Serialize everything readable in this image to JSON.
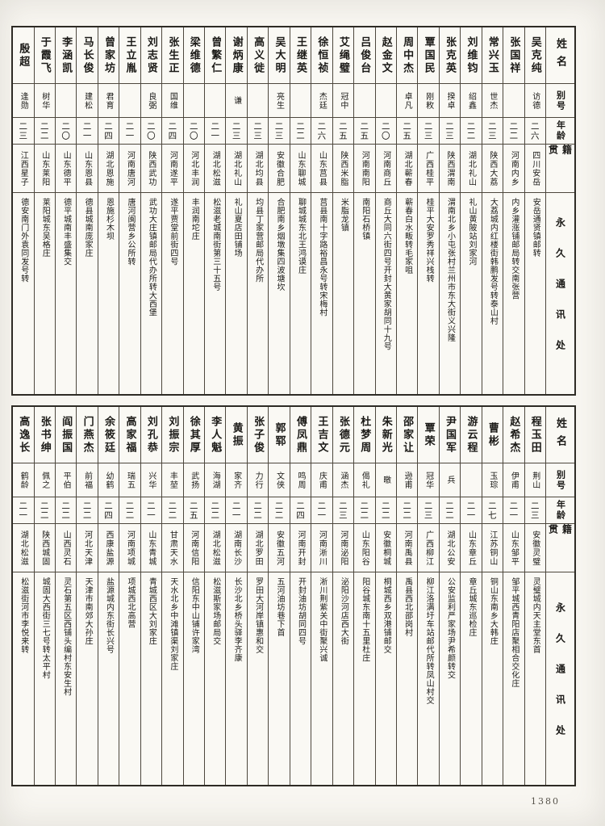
{
  "page": {
    "number": "1380"
  },
  "headers": {
    "name": "姓名",
    "alias": "别号",
    "age": "年龄",
    "native_place": "籍贯",
    "address": "永久通讯处"
  },
  "sections": [
    {
      "entries": [
        {
          "name": "吴克纯",
          "alias": "访德",
          "age": "二六",
          "native_place": "四川安岳",
          "address": "安岳通贤镇邮转"
        },
        {
          "name": "张国祥",
          "alias": "",
          "age": "二二",
          "native_place": "河南内乡",
          "address": "内乡灌涨铺邮局转交南张营"
        },
        {
          "name": "常兴玉",
          "alias": "世杰",
          "age": "二三",
          "native_place": "陕西大荔",
          "address": "大荔城内红楼街韩鹏发号转泰山村"
        },
        {
          "name": "刘维钧",
          "alias": "绍鑫",
          "age": "二二",
          "native_place": "湖北礼山",
          "address": "礼山黄陂站刘家河"
        },
        {
          "name": "张克英",
          "alias": "揆卓",
          "age": "二三",
          "native_place": "陕西渭南",
          "address": "渭南北乡小屯张村兰州市东大街义兴隆"
        },
        {
          "name": "覃国民",
          "alias": "刚敉",
          "age": "二三",
          "native_place": "广西桂平",
          "address": "桂平大安罗秀祥兴栈转"
        },
        {
          "name": "周中杰",
          "alias": "卓凡",
          "age": "二五",
          "native_place": "湖北蕲春",
          "address": "蕲春白水畈转毛家咀"
        },
        {
          "name": "赵金文",
          "alias": "",
          "age": "二〇",
          "native_place": "河南商丘",
          "address": "商丘大同六街四号开封大黄家胡同十九号"
        },
        {
          "name": "吕俊台",
          "alias": "",
          "age": "二五",
          "native_place": "河南南阳",
          "address": "南阳石桥镇"
        },
        {
          "name": "艾绳璧",
          "alias": "冠中",
          "age": "二五",
          "native_place": "陕西米脂",
          "address": "米脂龙镇"
        },
        {
          "name": "徐恒祯",
          "alias": "杰廷",
          "age": "二六",
          "native_place": "山东莒县",
          "address": "莒县南十字路裕昌永号转宋梅村"
        },
        {
          "name": "王继英",
          "alias": "",
          "age": "二二",
          "native_place": "山东聊城",
          "address": "聊城城东北王鸿谟庄"
        },
        {
          "name": "吴大明",
          "alias": "亮生",
          "age": "二三",
          "native_place": "安徽合肥",
          "address": "合肥南乡烟墩集四波塘坎"
        },
        {
          "name": "高义徙",
          "alias": "",
          "age": "二三",
          "native_place": "湖北均县",
          "address": "均县丁家营邮局代办所"
        },
        {
          "name": "谢炳康",
          "alias": "谦",
          "age": "二三",
          "native_place": "湖北礼山",
          "address": "礼山夏店田铺场"
        },
        {
          "name": "曾繁仁",
          "alias": "",
          "age": "二一",
          "native_place": "湖北松滋",
          "address": "松滋老城南街第三十五号"
        },
        {
          "name": "梁维德",
          "alias": "",
          "age": "二〇",
          "native_place": "河北丰润",
          "address": "丰润南坨庄"
        },
        {
          "name": "张生正",
          "alias": "国维",
          "age": "二四",
          "native_place": "河南遂平",
          "address": "遂平贾堂前街四号"
        },
        {
          "name": "刘志贤",
          "alias": "良弼",
          "age": "二〇",
          "native_place": "陕西武功",
          "address": "武功大庄镇邮局代办所转大西堡"
        },
        {
          "name": "王立胤",
          "alias": "",
          "age": "二一",
          "native_place": "河南唐河",
          "address": "唐河闽营乡公所转"
        },
        {
          "name": "曾家坊",
          "alias": "君育",
          "age": "二四",
          "native_place": "湖北恩施",
          "address": "恩施杉木坝"
        },
        {
          "name": "马长俊",
          "alias": "建松",
          "age": "二一",
          "native_place": "山东恩县",
          "address": "德县城南庞家庄"
        },
        {
          "name": "李涵凯",
          "alias": "",
          "age": "二〇",
          "native_place": "山东德平",
          "address": "德平城南丰盛集交"
        },
        {
          "name": "于霞飞",
          "alias": "树华",
          "age": "二二",
          "native_place": "山东莱阳",
          "address": "莱阳城东吴格庄"
        },
        {
          "name": "殷超",
          "alias": "逢勋",
          "age": "二三",
          "native_place": "江西星子",
          "address": "德安南门外袁同发号转"
        }
      ]
    },
    {
      "entries": [
        {
          "name": "程玉田",
          "alias": "荆山",
          "age": "二三",
          "native_place": "安徽灵璧",
          "address": "灵璧城内天主堂东首"
        },
        {
          "name": "赵希杰",
          "alias": "伊甫",
          "age": "二一",
          "native_place": "山东邹平",
          "address": "邹平城西青阳店聚相合交化庄"
        },
        {
          "name": "曹彬",
          "alias": "玉琮",
          "age": "二七",
          "native_place": "江苏铜山",
          "address": "铜山东南乡大韩庄"
        },
        {
          "name": "游云程",
          "alias": "",
          "age": "二一",
          "native_place": "山东章丘",
          "address": "章丘城东巡检庄"
        },
        {
          "name": "尹国军",
          "alias": "兵",
          "age": "二二",
          "native_place": "湖北公安",
          "address": "公安监利严家场尹希颜转交"
        },
        {
          "name": "覃荣",
          "alias": "冠华",
          "age": "二三",
          "native_place": "广西柳江",
          "address": "柳江洛满圩车站邮代所转凤山村交"
        },
        {
          "name": "邵家让",
          "alias": "逊甫",
          "age": "二二",
          "native_place": "河南禹县",
          "address": "禹县西北邵岗村"
        },
        {
          "name": "朱新光",
          "alias": "曒",
          "age": "二二",
          "native_place": "安徽桐城",
          "address": "桐城西乡双港铺邮交"
        },
        {
          "name": "杜梦周",
          "alias": "偈礼",
          "age": "二二",
          "native_place": "山东阳谷",
          "address": "阳谷城东南十五里杜庄"
        },
        {
          "name": "张德元",
          "alias": "涵杰",
          "age": "二三",
          "native_place": "河南泌阳",
          "address": "泌阳沙河店西大街"
        },
        {
          "name": "王吉文",
          "alias": "庆甫",
          "age": "二一",
          "native_place": "河南淅川",
          "address": "淅川荆紫关中街聚兴诚"
        },
        {
          "name": "傅凤鼎",
          "alias": "鸣周",
          "age": "二四",
          "native_place": "河南开封",
          "address": "开封油坊胡同四号"
        },
        {
          "name": "郭郓",
          "alias": "文侠",
          "age": "二二",
          "native_place": "安徽五河",
          "address": "五河油坊巷下首"
        },
        {
          "name": "张子俊",
          "alias": "力行",
          "age": "二二",
          "native_place": "湖北罗田",
          "address": "罗田大河岸镇惠和交"
        },
        {
          "name": "黄振",
          "alias": "家齐",
          "age": "二一",
          "native_place": "湖南长沙",
          "address": "长沙北乡桥头驿李齐康"
        },
        {
          "name": "李人魁",
          "alias": "海湖",
          "age": "二二",
          "native_place": "湖北松滋",
          "address": "松滋斯家场邮局交"
        },
        {
          "name": "徐其厚",
          "alias": "武扬",
          "age": "二五",
          "native_place": "河南信阳",
          "address": "信阳东中山铺许家湾"
        },
        {
          "name": "刘振宗",
          "alias": "丰堃",
          "age": "二二",
          "native_place": "甘肃天水",
          "address": "天水北乡中滩镇渠刘家庄"
        },
        {
          "name": "刘孔恭",
          "alias": "兴华",
          "age": "二一",
          "native_place": "山东青城",
          "address": "青城西区大刘家庄"
        },
        {
          "name": "高家福",
          "alias": "瑞五",
          "age": "二二",
          "native_place": "河南项城",
          "address": "项城西北高营"
        },
        {
          "name": "余筱廷",
          "alias": "幼鹤",
          "age": "二四",
          "native_place": "西康盐源",
          "address": "盐源城内东街长兴号"
        },
        {
          "name": "门燕杰",
          "alias": "前福",
          "age": "二二",
          "native_place": "河北天津",
          "address": "天津市南郊大孙庄"
        },
        {
          "name": "阎振国",
          "alias": "平伯",
          "age": "二二",
          "native_place": "山西灵石",
          "address": "灵石第五区西铺头编村东安生村"
        },
        {
          "name": "张书绅",
          "alias": "佩之",
          "age": "二二",
          "native_place": "陕西城固",
          "address": "城固大西街三七号转太平村"
        },
        {
          "name": "高逸长",
          "alias": "鹤龄",
          "age": "二一",
          "native_place": "湖北松滋",
          "address": "松滋街河市李悦来转"
        }
      ]
    }
  ]
}
